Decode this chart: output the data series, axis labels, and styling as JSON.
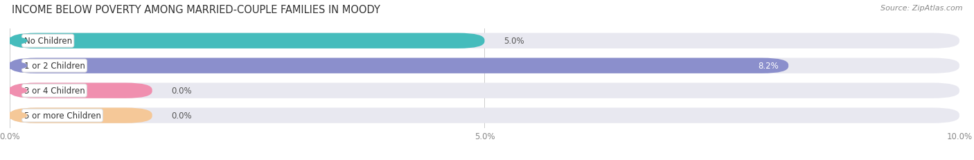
{
  "title": "INCOME BELOW POVERTY AMONG MARRIED-COUPLE FAMILIES IN MOODY",
  "source": "Source: ZipAtlas.com",
  "categories": [
    "No Children",
    "1 or 2 Children",
    "3 or 4 Children",
    "5 or more Children"
  ],
  "values": [
    5.0,
    8.2,
    0.0,
    0.0
  ],
  "bar_colors": [
    "#45BCBC",
    "#8B8FCC",
    "#F08FAF",
    "#F5C898"
  ],
  "bar_bg_color": "#E8E8F0",
  "xlim": [
    0,
    10.0
  ],
  "xticks": [
    0.0,
    5.0,
    10.0
  ],
  "xtick_labels": [
    "0.0%",
    "5.0%",
    "10.0%"
  ],
  "title_fontsize": 10.5,
  "source_fontsize": 8,
  "tick_fontsize": 8.5,
  "label_fontsize": 8.5,
  "value_fontsize": 8.5,
  "background_color": "#FFFFFF",
  "zero_value_bar_width": 1.5
}
